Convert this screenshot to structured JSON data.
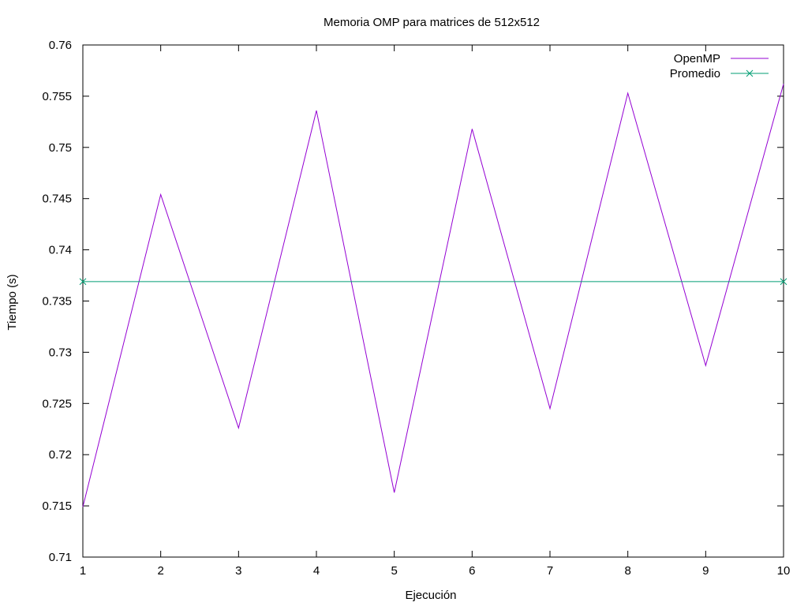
{
  "chart_data": {
    "type": "line",
    "title": "Memoria OMP para matrices de 512x512",
    "xlabel": "Ejecución",
    "ylabel": "Tiempo (s)",
    "x": [
      1,
      2,
      3,
      4,
      5,
      6,
      7,
      8,
      9,
      10
    ],
    "xlim": [
      1,
      10
    ],
    "ylim": [
      0.71,
      0.76
    ],
    "xticks": [
      "1",
      "2",
      "3",
      "4",
      "5",
      "6",
      "7",
      "8",
      "9",
      "10"
    ],
    "yticks": [
      "0.71",
      "0.715",
      "0.72",
      "0.725",
      "0.73",
      "0.735",
      "0.74",
      "0.745",
      "0.75",
      "0.755",
      "0.76"
    ],
    "grid": false,
    "legend_position": "top-right",
    "series": [
      {
        "name": "OpenMP",
        "color": "#9400d3",
        "marker": "none",
        "values": [
          0.7149,
          0.7454,
          0.7226,
          0.7536,
          0.7163,
          0.7518,
          0.7245,
          0.7553,
          0.7287,
          0.7562
        ]
      },
      {
        "name": "Promedio",
        "color": "#009e73",
        "marker": "x",
        "values": [
          0.7369,
          0.7369,
          0.7369,
          0.7369,
          0.7369,
          0.7369,
          0.7369,
          0.7369,
          0.7369,
          0.7369
        ]
      }
    ]
  }
}
